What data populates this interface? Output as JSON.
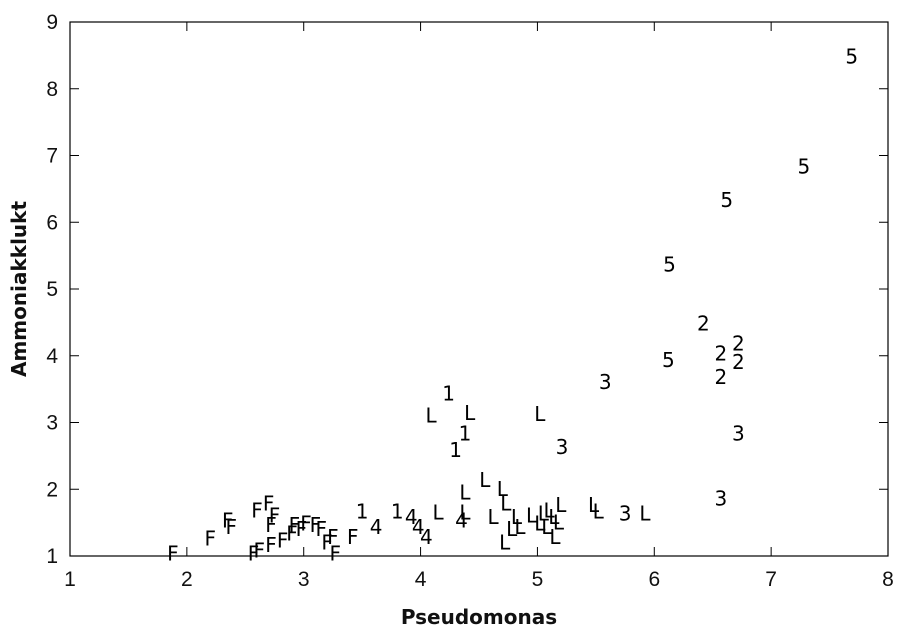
{
  "chart_data": {
    "type": "scatter",
    "title": "",
    "xlabel": "Pseudomonas",
    "ylabel": "Ammoniakklukt",
    "xlim": [
      1,
      8
    ],
    "ylim": [
      1,
      9
    ],
    "xticks": [
      "1",
      "2",
      "3",
      "4",
      "5",
      "6",
      "7",
      "8"
    ],
    "yticks": [
      "1",
      "2",
      "3",
      "4",
      "5",
      "6",
      "7",
      "8",
      "9"
    ],
    "grid": false,
    "legend": "none",
    "marker_style": "text labels",
    "points": [
      {
        "x": 7.69,
        "y": 8.5,
        "label": "5"
      },
      {
        "x": 7.28,
        "y": 6.85,
        "label": "5"
      },
      {
        "x": 6.62,
        "y": 6.35,
        "label": "5"
      },
      {
        "x": 6.13,
        "y": 5.38,
        "label": "5"
      },
      {
        "x": 6.12,
        "y": 3.95,
        "label": "5"
      },
      {
        "x": 6.42,
        "y": 4.5,
        "label": "2"
      },
      {
        "x": 6.57,
        "y": 4.05,
        "label": "2"
      },
      {
        "x": 6.72,
        "y": 4.2,
        "label": "2"
      },
      {
        "x": 6.72,
        "y": 3.92,
        "label": "2"
      },
      {
        "x": 6.57,
        "y": 3.7,
        "label": "2"
      },
      {
        "x": 6.72,
        "y": 2.85,
        "label": "3"
      },
      {
        "x": 6.57,
        "y": 1.88,
        "label": "3"
      },
      {
        "x": 5.58,
        "y": 3.62,
        "label": "3"
      },
      {
        "x": 5.21,
        "y": 2.65,
        "label": "3"
      },
      {
        "x": 5.75,
        "y": 1.65,
        "label": "3"
      },
      {
        "x": 4.24,
        "y": 3.45,
        "label": "1"
      },
      {
        "x": 4.38,
        "y": 2.85,
        "label": "1"
      },
      {
        "x": 4.3,
        "y": 2.6,
        "label": "1"
      },
      {
        "x": 3.5,
        "y": 1.68,
        "label": "1"
      },
      {
        "x": 3.8,
        "y": 1.68,
        "label": "1"
      },
      {
        "x": 4.09,
        "y": 3.12,
        "label": "L"
      },
      {
        "x": 4.42,
        "y": 3.16,
        "label": "L"
      },
      {
        "x": 5.02,
        "y": 3.14,
        "label": "L"
      },
      {
        "x": 4.55,
        "y": 2.15,
        "label": "L"
      },
      {
        "x": 4.38,
        "y": 1.97,
        "label": "L"
      },
      {
        "x": 4.7,
        "y": 2.02,
        "label": "L"
      },
      {
        "x": 4.73,
        "y": 1.8,
        "label": "L"
      },
      {
        "x": 4.15,
        "y": 1.67,
        "label": "L"
      },
      {
        "x": 4.38,
        "y": 1.67,
        "label": "L"
      },
      {
        "x": 4.62,
        "y": 1.6,
        "label": "L"
      },
      {
        "x": 4.82,
        "y": 1.6,
        "label": "L"
      },
      {
        "x": 4.95,
        "y": 1.62,
        "label": "L"
      },
      {
        "x": 5.05,
        "y": 1.65,
        "label": "L"
      },
      {
        "x": 5.1,
        "y": 1.7,
        "label": "L"
      },
      {
        "x": 5.14,
        "y": 1.6,
        "label": "L"
      },
      {
        "x": 5.2,
        "y": 1.78,
        "label": "L"
      },
      {
        "x": 5.02,
        "y": 1.5,
        "label": "L"
      },
      {
        "x": 5.08,
        "y": 1.45,
        "label": "L"
      },
      {
        "x": 5.18,
        "y": 1.52,
        "label": "L"
      },
      {
        "x": 4.78,
        "y": 1.42,
        "label": "L"
      },
      {
        "x": 4.85,
        "y": 1.45,
        "label": "L"
      },
      {
        "x": 4.72,
        "y": 1.22,
        "label": "L"
      },
      {
        "x": 5.15,
        "y": 1.3,
        "label": "L"
      },
      {
        "x": 5.48,
        "y": 1.78,
        "label": "L"
      },
      {
        "x": 5.52,
        "y": 1.68,
        "label": "L"
      },
      {
        "x": 5.92,
        "y": 1.65,
        "label": "L"
      },
      {
        "x": 3.62,
        "y": 1.45,
        "label": "4"
      },
      {
        "x": 3.92,
        "y": 1.6,
        "label": "4"
      },
      {
        "x": 3.98,
        "y": 1.45,
        "label": "4"
      },
      {
        "x": 4.05,
        "y": 1.3,
        "label": "4"
      },
      {
        "x": 4.35,
        "y": 1.55,
        "label": "4"
      },
      {
        "x": 2.7,
        "y": 1.8,
        "label": "F"
      },
      {
        "x": 2.6,
        "y": 1.7,
        "label": "F"
      },
      {
        "x": 2.75,
        "y": 1.62,
        "label": "F"
      },
      {
        "x": 2.35,
        "y": 1.55,
        "label": "F"
      },
      {
        "x": 2.38,
        "y": 1.45,
        "label": "F"
      },
      {
        "x": 2.72,
        "y": 1.48,
        "label": "F"
      },
      {
        "x": 2.92,
        "y": 1.48,
        "label": "F"
      },
      {
        "x": 3.02,
        "y": 1.5,
        "label": "F"
      },
      {
        "x": 3.1,
        "y": 1.48,
        "label": "F"
      },
      {
        "x": 3.15,
        "y": 1.42,
        "label": "F"
      },
      {
        "x": 2.98,
        "y": 1.42,
        "label": "F"
      },
      {
        "x": 2.9,
        "y": 1.35,
        "label": "F"
      },
      {
        "x": 3.25,
        "y": 1.3,
        "label": "F"
      },
      {
        "x": 3.2,
        "y": 1.22,
        "label": "F"
      },
      {
        "x": 3.42,
        "y": 1.3,
        "label": "F"
      },
      {
        "x": 2.82,
        "y": 1.25,
        "label": "F"
      },
      {
        "x": 2.72,
        "y": 1.18,
        "label": "F"
      },
      {
        "x": 2.62,
        "y": 1.1,
        "label": "F"
      },
      {
        "x": 2.57,
        "y": 1.05,
        "label": "F"
      },
      {
        "x": 2.2,
        "y": 1.28,
        "label": "F"
      },
      {
        "x": 1.88,
        "y": 1.05,
        "label": "F"
      },
      {
        "x": 3.27,
        "y": 1.05,
        "label": "F"
      }
    ]
  }
}
